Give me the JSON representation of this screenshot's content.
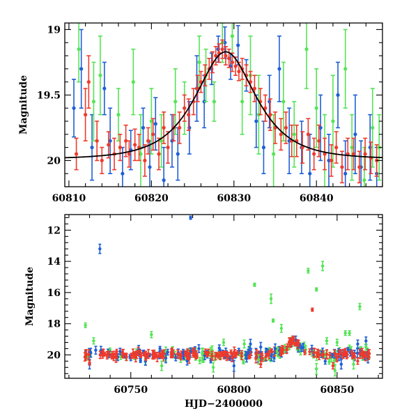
{
  "colors": {
    "blue": "#1f5fd6",
    "red": "#ee3a2c",
    "green": "#55e455",
    "fit": "#000000"
  },
  "chart_data": [
    {
      "type": "scatter",
      "panel": "top",
      "xlabel": "",
      "ylabel": "Magnitude",
      "xlim": [
        60809.5,
        60848
      ],
      "ylim": [
        20.2,
        18.95
      ],
      "y_inverted": true,
      "grid": false,
      "x_ticks": [
        60810,
        60820,
        60830,
        60840
      ],
      "y_ticks": [
        19,
        19.5,
        20
      ],
      "x_tick_labels": [
        "60810",
        "60820",
        "60830",
        "60840"
      ],
      "y_tick_labels": [
        "19",
        "19.5",
        "20"
      ],
      "fit_curve": {
        "type": "line",
        "baseline": 19.99,
        "peak": 19.17,
        "t0": 60829,
        "tE": 4.8
      },
      "series": [
        {
          "color": "blue",
          "points": [
            [
              60810.6,
              19.6,
              0.22
            ],
            [
              60811.5,
              19.3,
              0.3
            ],
            [
              60812.8,
              19.9,
              0.25
            ],
            [
              60814.3,
              19.45,
              0.2
            ],
            [
              60815.0,
              19.85,
              0.25
            ],
            [
              60816.5,
              20.1,
              0.2
            ],
            [
              60817.5,
              19.92,
              0.15
            ],
            [
              60819.0,
              19.75,
              0.15
            ],
            [
              60819.8,
              20.05,
              0.2
            ],
            [
              60820.5,
              19.72,
              0.2
            ],
            [
              60821.5,
              20.15,
              0.25
            ],
            [
              60822.5,
              19.85,
              0.2
            ],
            [
              60823.2,
              19.95,
              0.2
            ],
            [
              60824.6,
              19.75,
              0.2
            ],
            [
              60825.5,
              19.45,
              0.25
            ],
            [
              60826.4,
              19.55,
              0.2
            ],
            [
              60827.3,
              19.3,
              0.12
            ],
            [
              60828.1,
              19.15,
              0.1
            ],
            [
              60828.9,
              19.1,
              0.12
            ],
            [
              60829.6,
              19.28,
              0.1
            ],
            [
              60830.5,
              19.12,
              0.15
            ],
            [
              60831.5,
              19.35,
              0.12
            ],
            [
              60832.7,
              19.7,
              0.2
            ],
            [
              60833.6,
              19.9,
              0.2
            ],
            [
              60834.3,
              19.55,
              0.2
            ],
            [
              60835.5,
              19.3,
              0.25
            ],
            [
              60836.7,
              19.85,
              0.25
            ],
            [
              60838.2,
              19.9,
              0.2
            ],
            [
              60839.2,
              20.1,
              0.3
            ],
            [
              60840.5,
              19.75,
              0.25
            ],
            [
              60841.5,
              20.0,
              0.2
            ],
            [
              60842.6,
              19.5,
              0.25
            ],
            [
              60843.5,
              20.1,
              0.25
            ],
            [
              60844.7,
              19.8,
              0.3
            ],
            [
              60845.4,
              20.05,
              0.2
            ],
            [
              60846.5,
              19.9,
              0.25
            ],
            [
              60847.3,
              20.1,
              0.2
            ]
          ]
        },
        {
          "color": "green",
          "points": [
            [
              60811.2,
              19.15,
              0.25
            ],
            [
              60813.0,
              19.55,
              0.3
            ],
            [
              60813.8,
              19.35,
              0.3
            ],
            [
              60816.0,
              19.65,
              0.2
            ],
            [
              60817.8,
              19.4,
              0.25
            ],
            [
              60818.7,
              19.95,
              0.3
            ],
            [
              60820.0,
              19.7,
              0.25
            ],
            [
              60821.2,
              19.85,
              0.2
            ],
            [
              60822.9,
              19.55,
              0.25
            ],
            [
              60824.0,
              19.6,
              0.2
            ],
            [
              60825.8,
              19.25,
              0.2
            ],
            [
              60826.6,
              19.35,
              0.2
            ],
            [
              60827.6,
              19.55,
              0.15
            ],
            [
              60828.6,
              19.1,
              0.15
            ],
            [
              60829.8,
              19.05,
              0.2
            ],
            [
              60831.0,
              19.55,
              0.25
            ],
            [
              60832.0,
              19.35,
              0.3
            ],
            [
              60833.0,
              19.65,
              0.3
            ],
            [
              60834.8,
              19.95,
              0.3
            ],
            [
              60836.0,
              19.55,
              0.3
            ],
            [
              60837.3,
              19.8,
              0.25
            ],
            [
              60838.8,
              19.15,
              0.3
            ],
            [
              60840.0,
              19.6,
              0.3
            ],
            [
              60841.0,
              19.95,
              0.3
            ],
            [
              60842.0,
              19.7,
              0.35
            ],
            [
              60843.5,
              19.3,
              0.3
            ],
            [
              60844.3,
              19.9,
              0.25
            ],
            [
              60845.8,
              20.15,
              0.25
            ],
            [
              60846.8,
              19.75,
              0.3
            ],
            [
              60847.6,
              19.9,
              0.25
            ]
          ]
        },
        {
          "color": "red",
          "points": [
            [
              60810.9,
              19.95,
              0.12
            ],
            [
              60812.0,
              19.65,
              0.2
            ],
            [
              60812.4,
              19.4,
              0.2
            ],
            [
              60813.4,
              19.85,
              0.15
            ],
            [
              60814.0,
              20.0,
              0.1
            ],
            [
              60814.8,
              19.88,
              0.1
            ],
            [
              60815.5,
              19.95,
              0.12
            ],
            [
              60816.2,
              19.9,
              0.1
            ],
            [
              60816.9,
              19.85,
              0.12
            ],
            [
              60817.3,
              19.95,
              0.1
            ],
            [
              60818.0,
              19.88,
              0.12
            ],
            [
              60818.5,
              19.9,
              0.1
            ],
            [
              60819.2,
              20.0,
              0.12
            ],
            [
              60819.6,
              19.85,
              0.1
            ],
            [
              60820.2,
              19.8,
              0.12
            ],
            [
              60820.9,
              19.95,
              0.12
            ],
            [
              60821.5,
              19.75,
              0.12
            ],
            [
              60822.0,
              19.9,
              0.12
            ],
            [
              60822.7,
              19.75,
              0.1
            ],
            [
              60823.4,
              19.75,
              0.12
            ],
            [
              60824.0,
              19.6,
              0.1
            ],
            [
              60824.5,
              19.65,
              0.12
            ],
            [
              60825.1,
              19.55,
              0.1
            ],
            [
              60825.6,
              19.45,
              0.1
            ],
            [
              60826.0,
              19.4,
              0.08
            ],
            [
              60826.5,
              19.35,
              0.08
            ],
            [
              60827.0,
              19.3,
              0.08
            ],
            [
              60827.4,
              19.25,
              0.08
            ],
            [
              60827.8,
              19.2,
              0.07
            ],
            [
              60828.2,
              19.18,
              0.07
            ],
            [
              60828.6,
              19.15,
              0.07
            ],
            [
              60829.0,
              19.2,
              0.07
            ],
            [
              60829.4,
              19.22,
              0.07
            ],
            [
              60829.8,
              19.25,
              0.07
            ],
            [
              60830.2,
              19.28,
              0.07
            ],
            [
              60830.6,
              19.32,
              0.07
            ],
            [
              60831.0,
              19.3,
              0.08
            ],
            [
              60831.5,
              19.35,
              0.08
            ],
            [
              60832.0,
              19.4,
              0.08
            ],
            [
              60832.5,
              19.45,
              0.1
            ],
            [
              60833.2,
              19.55,
              0.1
            ],
            [
              60833.8,
              19.6,
              0.1
            ],
            [
              60834.4,
              19.65,
              0.12
            ],
            [
              60835.0,
              19.75,
              0.12
            ],
            [
              60835.7,
              19.8,
              0.12
            ],
            [
              60836.3,
              19.75,
              0.12
            ],
            [
              60837.0,
              19.85,
              0.12
            ],
            [
              60837.6,
              19.85,
              0.12
            ],
            [
              60838.3,
              19.9,
              0.12
            ],
            [
              60839.0,
              19.8,
              0.12
            ],
            [
              60839.7,
              19.95,
              0.12
            ],
            [
              60840.3,
              19.85,
              0.12
            ],
            [
              60841.0,
              19.95,
              0.12
            ],
            [
              60841.8,
              20.0,
              0.12
            ],
            [
              60842.4,
              19.9,
              0.12
            ],
            [
              60843.1,
              20.05,
              0.12
            ],
            [
              60843.8,
              19.95,
              0.12
            ],
            [
              60844.5,
              19.95,
              0.12
            ],
            [
              60845.2,
              20.05,
              0.12
            ],
            [
              60845.9,
              19.95,
              0.12
            ],
            [
              60846.6,
              19.98,
              0.12
            ],
            [
              60847.3,
              20.0,
              0.12
            ]
          ]
        }
      ]
    },
    {
      "type": "scatter",
      "panel": "bottom",
      "xlabel": "HJD−2400000",
      "ylabel": "Magnitude",
      "xlim": [
        60718,
        60872
      ],
      "ylim": [
        21.5,
        11
      ],
      "y_inverted": true,
      "grid": false,
      "x_ticks": [
        60750,
        60800,
        60850
      ],
      "y_ticks": [
        12,
        14,
        16,
        18,
        20
      ],
      "x_tick_labels": [
        "60750",
        "60800",
        "60850"
      ],
      "y_tick_labels": [
        "12",
        "14",
        "16",
        "18",
        "20"
      ],
      "baseline_band": {
        "x_start": 60727,
        "x_end": 60866,
        "baseline": 20.0,
        "event": {
          "t0": 60829,
          "peak": 19.15,
          "tE": 4.8
        },
        "scatter": {
          "blue": 0.4,
          "red": 0.25,
          "green": 0.45
        },
        "n_per_series": {
          "blue": 115,
          "red": 165,
          "green": 95
        }
      },
      "series": [
        {
          "color": "blue",
          "points": [
            [
              60779,
              11.2,
              0.1
            ],
            [
              60735,
              13.2,
              0.3
            ],
            [
              60733,
              19.7,
              0.25
            ],
            [
              60783,
              19.6,
              0.25
            ],
            [
              60808,
              19.3,
              0.3
            ],
            [
              60813,
              19.5,
              0.3
            ],
            [
              60820,
              19.6,
              0.3
            ],
            [
              60860,
              19.3,
              0.25
            ],
            [
              60864,
              19.1,
              0.25
            ],
            [
              60730,
              20.6,
              0.3
            ],
            [
              60800,
              20.7,
              0.35
            ],
            [
              60852,
              20.6,
              0.3
            ]
          ]
        },
        {
          "color": "green",
          "points": [
            [
              60728,
              18.1,
              0.15
            ],
            [
              60732,
              19.1,
              0.2
            ],
            [
              60810,
              15.5,
              0.1
            ],
            [
              60812,
              20.3,
              0.3
            ],
            [
              60818,
              16.4,
              0.3
            ],
            [
              60819,
              17.8,
              0.1
            ],
            [
              60823,
              18.3,
              0.25
            ],
            [
              60836,
              14.6,
              0.15
            ],
            [
              60840,
              15.8,
              0.1
            ],
            [
              60843,
              14.3,
              0.3
            ],
            [
              60845,
              19.1,
              0.2
            ],
            [
              60850,
              19.2,
              0.2
            ],
            [
              60854,
              18.6,
              0.15
            ],
            [
              60856,
              18.6,
              0.15
            ],
            [
              60861,
              16.9,
              0.2
            ],
            [
              60864,
              19.5,
              0.2
            ],
            [
              60760,
              18.7,
              0.2
            ],
            [
              60795,
              19.2,
              0.2
            ],
            [
              60805,
              19.3,
              0.25
            ],
            [
              60765,
              20.7,
              0.3
            ],
            [
              60790,
              20.8,
              0.3
            ],
            [
              60840,
              20.9,
              0.35
            ],
            [
              60849,
              21.0,
              0.35
            ],
            [
              60858,
              20.6,
              0.3
            ]
          ]
        },
        {
          "color": "red",
          "points": [
            [
              60838,
              17.1,
              0.1
            ],
            [
              60730,
              20.5,
              0.15
            ],
            [
              60770,
              19.7,
              0.15
            ],
            [
              60813,
              20.6,
              0.2
            ],
            [
              60848,
              20.7,
              0.2
            ],
            [
              60860,
              20.4,
              0.2
            ]
          ]
        }
      ]
    }
  ]
}
